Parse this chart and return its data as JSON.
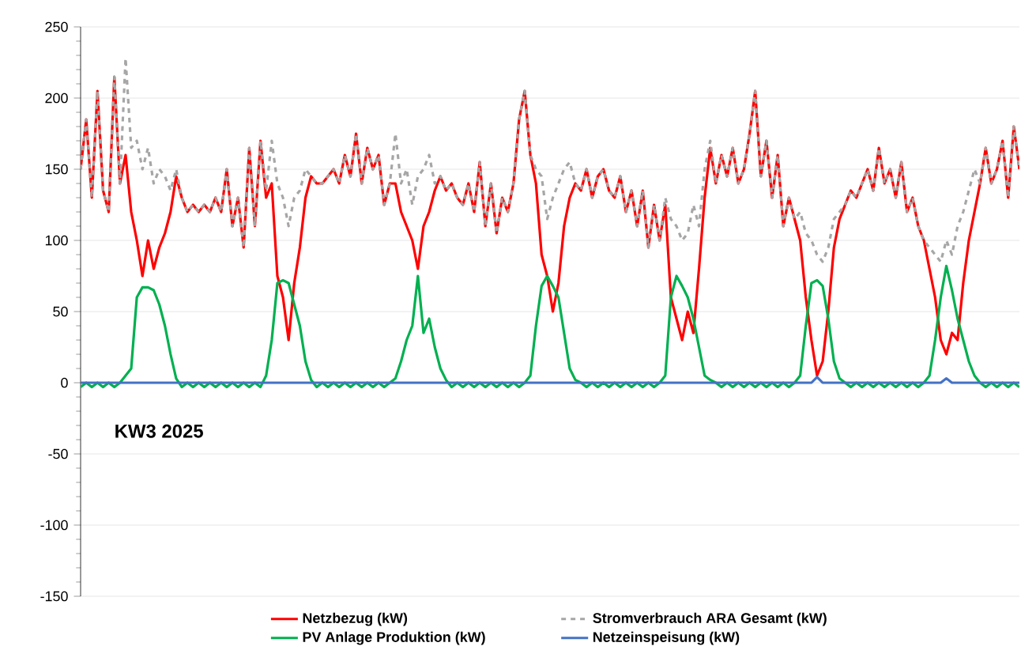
{
  "chart_data": {
    "type": "line",
    "categories": [
      null,
      null,
      null,
      null,
      null,
      null,
      null,
      null,
      null,
      null,
      null,
      null,
      null,
      null,
      null,
      null,
      null,
      null,
      null,
      null,
      null,
      null,
      null,
      null,
      null,
      null,
      null,
      null,
      null,
      null,
      null,
      null,
      null,
      null,
      null,
      null,
      null,
      null,
      null,
      null,
      null,
      null,
      null,
      null,
      null,
      null,
      null,
      null,
      null,
      null,
      null,
      null,
      null,
      null,
      null,
      null,
      null,
      null,
      null,
      null,
      null,
      null,
      null,
      null,
      null,
      null,
      null,
      null,
      null,
      null,
      null,
      null,
      null,
      null,
      null,
      null,
      null,
      null,
      null,
      null,
      null,
      null,
      null,
      null,
      null,
      null,
      null,
      null,
      null,
      null,
      null,
      null,
      null,
      null,
      null,
      null,
      null,
      null,
      null,
      null,
      null,
      null,
      null,
      null,
      null,
      null,
      null,
      null,
      null,
      null,
      null,
      null,
      null,
      null,
      null,
      null,
      null,
      null,
      null,
      null,
      null,
      null,
      null,
      null,
      null,
      null,
      null,
      null,
      null,
      null,
      null,
      null,
      null,
      null,
      null,
      null,
      null,
      null,
      null,
      null,
      null,
      null,
      null,
      null,
      null,
      null,
      null,
      null,
      null,
      null,
      null,
      null,
      null,
      null,
      null,
      null,
      null,
      null,
      null,
      null,
      null,
      null,
      null,
      null,
      null,
      null,
      null,
      null
    ],
    "series": [
      {
        "name": "Netzbezug (kW)",
        "color": "#ff0000",
        "line_style": "solid",
        "values": [
          150,
          185,
          130,
          205,
          135,
          120,
          215,
          140,
          160,
          120,
          100,
          75,
          100,
          80,
          95,
          105,
          120,
          145,
          130,
          120,
          125,
          120,
          125,
          120,
          130,
          120,
          150,
          110,
          130,
          95,
          165,
          110,
          170,
          130,
          140,
          75,
          60,
          30,
          70,
          95,
          130,
          145,
          140,
          140,
          145,
          150,
          140,
          160,
          145,
          175,
          140,
          165,
          150,
          160,
          125,
          140,
          140,
          120,
          110,
          100,
          80,
          110,
          120,
          135,
          145,
          135,
          140,
          130,
          125,
          140,
          120,
          155,
          110,
          140,
          105,
          130,
          120,
          140,
          185,
          205,
          160,
          140,
          90,
          75,
          50,
          70,
          110,
          130,
          140,
          135,
          150,
          130,
          145,
          150,
          135,
          130,
          145,
          120,
          135,
          110,
          135,
          95,
          125,
          100,
          125,
          60,
          45,
          30,
          50,
          35,
          80,
          130,
          165,
          140,
          160,
          145,
          165,
          140,
          150,
          175,
          205,
          145,
          170,
          130,
          160,
          110,
          130,
          115,
          100,
          60,
          30,
          5,
          15,
          50,
          95,
          115,
          125,
          135,
          130,
          140,
          150,
          135,
          165,
          140,
          150,
          130,
          155,
          120,
          130,
          110,
          100,
          80,
          60,
          30,
          20,
          35,
          30,
          70,
          100,
          120,
          140,
          165,
          140,
          150,
          170,
          130,
          180,
          150
        ]
      },
      {
        "name": "Stromverbrauch ARA Gesamt (kW)",
        "color": "#a6a6a6",
        "line_style": "dashed",
        "values": [
          150,
          185,
          130,
          205,
          135,
          120,
          215,
          140,
          228,
          165,
          170,
          150,
          165,
          140,
          150,
          145,
          135,
          150,
          130,
          120,
          125,
          120,
          125,
          120,
          130,
          120,
          150,
          110,
          130,
          95,
          165,
          110,
          170,
          135,
          170,
          140,
          130,
          110,
          130,
          135,
          150,
          145,
          140,
          140,
          145,
          150,
          140,
          160,
          145,
          175,
          140,
          165,
          150,
          160,
          125,
          140,
          175,
          140,
          150,
          125,
          145,
          150,
          160,
          140,
          145,
          135,
          140,
          130,
          125,
          140,
          120,
          155,
          110,
          140,
          105,
          130,
          120,
          140,
          185,
          205,
          160,
          150,
          145,
          115,
          130,
          140,
          150,
          155,
          140,
          135,
          150,
          130,
          145,
          150,
          135,
          130,
          145,
          120,
          135,
          110,
          135,
          95,
          125,
          100,
          130,
          115,
          110,
          100,
          105,
          125,
          110,
          150,
          170,
          140,
          160,
          145,
          165,
          140,
          150,
          175,
          205,
          145,
          170,
          130,
          160,
          110,
          130,
          115,
          120,
          105,
          100,
          90,
          85,
          95,
          115,
          120,
          125,
          135,
          130,
          140,
          150,
          135,
          165,
          140,
          150,
          130,
          155,
          120,
          130,
          110,
          100,
          95,
          90,
          85,
          100,
          90,
          110,
          120,
          135,
          150,
          140,
          165,
          140,
          150,
          170,
          130,
          180,
          150
        ]
      },
      {
        "name": "PV Anlage Produktion (kW)",
        "color": "#00b050",
        "line_style": "solid",
        "values": [
          -3,
          0,
          -3,
          0,
          -3,
          0,
          -3,
          0,
          5,
          10,
          60,
          67,
          67,
          65,
          55,
          40,
          20,
          3,
          -3,
          0,
          -3,
          0,
          -3,
          0,
          -3,
          0,
          -3,
          0,
          -3,
          0,
          -3,
          0,
          -3,
          5,
          30,
          70,
          72,
          70,
          55,
          40,
          15,
          2,
          -3,
          0,
          -3,
          0,
          -3,
          0,
          -3,
          0,
          -3,
          0,
          -3,
          0,
          -3,
          0,
          3,
          15,
          30,
          40,
          75,
          35,
          45,
          25,
          10,
          2,
          -3,
          0,
          -3,
          0,
          -3,
          0,
          -3,
          0,
          -3,
          0,
          -3,
          0,
          -3,
          0,
          5,
          40,
          68,
          75,
          68,
          60,
          35,
          10,
          2,
          0,
          -3,
          0,
          -3,
          0,
          -3,
          0,
          -3,
          0,
          -3,
          0,
          -3,
          0,
          -3,
          0,
          5,
          60,
          75,
          68,
          60,
          45,
          25,
          5,
          2,
          0,
          -3,
          0,
          -3,
          0,
          -3,
          0,
          -3,
          0,
          -3,
          0,
          -3,
          0,
          -3,
          0,
          5,
          40,
          70,
          72,
          68,
          45,
          15,
          3,
          0,
          -3,
          0,
          -3,
          0,
          -3,
          0,
          -3,
          0,
          -3,
          0,
          -3,
          0,
          -3,
          0,
          5,
          30,
          60,
          82,
          65,
          45,
          30,
          15,
          5,
          0,
          -3,
          0,
          -3,
          0,
          -3,
          0,
          -3
        ]
      },
      {
        "name": "Netzeinspeisung (kW)",
        "color": "#4472c4",
        "line_style": "solid",
        "values": [
          0,
          0,
          0,
          0,
          0,
          0,
          0,
          0,
          0,
          0,
          0,
          0,
          0,
          0,
          0,
          0,
          0,
          0,
          0,
          0,
          0,
          0,
          0,
          0,
          0,
          0,
          0,
          0,
          0,
          0,
          0,
          0,
          0,
          0,
          0,
          0,
          0,
          0,
          0,
          0,
          0,
          0,
          0,
          0,
          0,
          0,
          0,
          0,
          0,
          0,
          0,
          0,
          0,
          0,
          0,
          0,
          0,
          0,
          0,
          0,
          0,
          0,
          0,
          0,
          0,
          0,
          0,
          0,
          0,
          0,
          0,
          0,
          0,
          0,
          0,
          0,
          0,
          0,
          0,
          0,
          0,
          0,
          0,
          0,
          0,
          0,
          0,
          0,
          0,
          0,
          0,
          0,
          0,
          0,
          0,
          0,
          0,
          0,
          0,
          0,
          0,
          0,
          0,
          0,
          0,
          0,
          0,
          0,
          0,
          0,
          0,
          0,
          0,
          0,
          0,
          0,
          0,
          0,
          0,
          0,
          0,
          0,
          0,
          0,
          0,
          0,
          0,
          0,
          0,
          0,
          0,
          4,
          0,
          0,
          0,
          0,
          0,
          0,
          0,
          0,
          0,
          0,
          0,
          0,
          0,
          0,
          0,
          0,
          0,
          0,
          0,
          0,
          0,
          0,
          3,
          0,
          0,
          0,
          0,
          0,
          0,
          0,
          0,
          0,
          0,
          0,
          0,
          0
        ]
      }
    ],
    "ylim": [
      -150,
      250
    ],
    "yticks": [
      -150,
      -100,
      -50,
      0,
      50,
      100,
      150,
      200,
      250
    ],
    "grid": "y",
    "legend": "bottom",
    "tick_labels": "y",
    "annotations": [
      "KW3 2025"
    ]
  }
}
